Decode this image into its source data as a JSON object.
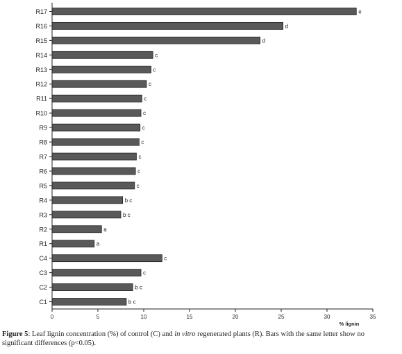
{
  "chart_data": {
    "type": "bar",
    "orientation": "horizontal",
    "categories": [
      "R17",
      "R16",
      "R15",
      "R14",
      "R13",
      "R12",
      "R11",
      "R10",
      "R9",
      "R8",
      "R7",
      "R6",
      "R5",
      "R4",
      "R3",
      "R2",
      "R1",
      "C4",
      "C3",
      "C2",
      "C1"
    ],
    "values": [
      33.2,
      25.2,
      22.7,
      11.0,
      10.8,
      10.3,
      9.8,
      9.7,
      9.6,
      9.5,
      9.2,
      9.1,
      9.0,
      7.7,
      7.5,
      5.4,
      4.6,
      12.0,
      9.7,
      8.8,
      8.1
    ],
    "significance_letters": [
      "e",
      "d",
      "d",
      "c",
      "c",
      "c",
      "c",
      "c",
      "c",
      "c",
      "c",
      "c",
      "c",
      "b c",
      "b c",
      "a",
      "a",
      "c",
      "c",
      "b c",
      "b c"
    ],
    "xlabel": "% lignin",
    "ylabel": "",
    "xlim": [
      0,
      35
    ],
    "xticks": [
      0,
      5,
      10,
      15,
      20,
      25,
      30,
      35
    ],
    "grid": false,
    "legend": "none",
    "bar_color": "#595959",
    "bar_border_color": "#222222",
    "axis_color": "#222222"
  },
  "caption": {
    "label": "Figure 5",
    "text_part1": ": Leaf lignin concentration (%) of control (C) and ",
    "italic": "in vitro",
    "text_part2": " regenerated plants (R). Bars with the same letter show no significant differences (p<0.05)."
  }
}
